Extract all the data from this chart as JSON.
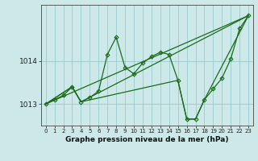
{
  "background_color": "#cce8e8",
  "grid_color": "#99cccc",
  "line_color": "#1a6b1a",
  "marker_color": "#1a6b1a",
  "title": "Graphe pression niveau de la mer (hPa)",
  "title_fontsize": 6.5,
  "title_fontweight": "bold",
  "xlim": [
    -0.5,
    23.5
  ],
  "ylim": [
    1012.5,
    1015.3
  ],
  "yticks": [
    1013,
    1014
  ],
  "ytick_fontsize": 6.5,
  "xticks": [
    0,
    1,
    2,
    3,
    4,
    5,
    6,
    7,
    8,
    9,
    10,
    11,
    12,
    13,
    14,
    15,
    16,
    17,
    18,
    19,
    20,
    21,
    22,
    23
  ],
  "xtick_fontsize": 5.0,
  "series": [
    {
      "x": [
        0,
        1,
        2,
        3,
        4,
        5,
        6,
        7,
        8,
        9,
        10,
        11,
        12,
        13,
        14,
        15,
        16,
        17,
        18,
        19,
        20,
        21,
        22,
        23
      ],
      "y": [
        1013.0,
        1013.1,
        1013.2,
        1013.4,
        1013.05,
        1013.15,
        1013.3,
        1014.15,
        1014.55,
        1013.85,
        1013.7,
        1013.95,
        1014.1,
        1014.2,
        1014.15,
        1013.55,
        1012.65,
        1012.65,
        1013.1,
        1013.35,
        1013.6,
        1014.05,
        1014.75,
        1015.05
      ],
      "marker": "D",
      "markersize": 2.5,
      "linewidth": 0.9
    },
    {
      "x": [
        0,
        23
      ],
      "y": [
        1013.0,
        1015.05
      ],
      "marker": null,
      "linewidth": 0.9
    },
    {
      "x": [
        0,
        3,
        4,
        23
      ],
      "y": [
        1013.0,
        1013.4,
        1013.05,
        1015.05
      ],
      "marker": null,
      "linewidth": 0.9
    },
    {
      "x": [
        0,
        3,
        4,
        15,
        16,
        17,
        18,
        23
      ],
      "y": [
        1013.0,
        1013.4,
        1013.05,
        1013.55,
        1012.65,
        1012.65,
        1013.1,
        1015.05
      ],
      "marker": null,
      "linewidth": 0.9
    }
  ]
}
